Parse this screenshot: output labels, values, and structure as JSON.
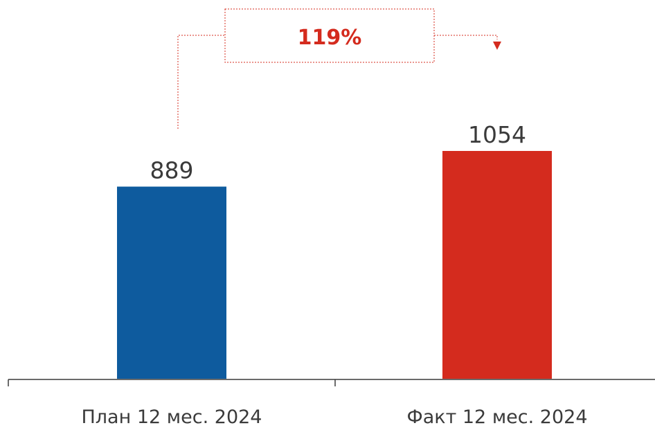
{
  "chart_data": {
    "type": "bar",
    "categories": [
      "План 12 мес. 2024",
      "Факт 12 мес. 2024"
    ],
    "values": [
      889,
      1054
    ],
    "value_labels": [
      "889",
      "1054"
    ],
    "colors": [
      "#0e5b9e",
      "#d42b1e"
    ],
    "ylim": [
      0,
      1054
    ],
    "grid": false,
    "annotation": {
      "text": "119%",
      "color": "#d42b1e"
    }
  }
}
